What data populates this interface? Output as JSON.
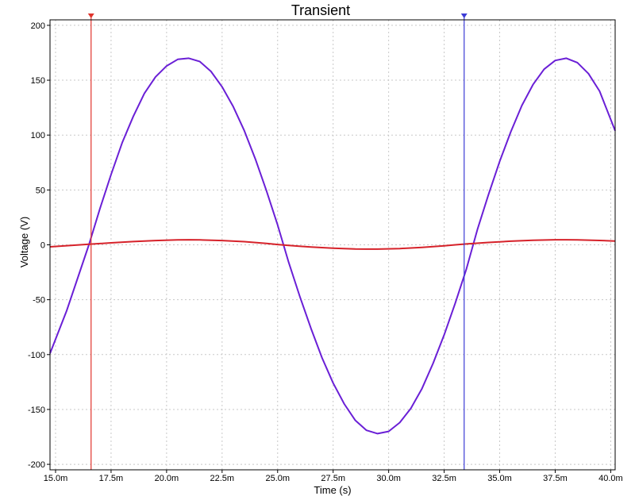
{
  "chart_data": {
    "type": "line",
    "title": "Transient",
    "xlabel": "Time (s)",
    "ylabel": "Voltage (V)",
    "xlim": [
      0.01475,
      0.0402
    ],
    "ylim": [
      -205,
      205
    ],
    "grid": true,
    "x_ticks": [
      0.015,
      0.0175,
      0.02,
      0.0225,
      0.025,
      0.0275,
      0.03,
      0.0325,
      0.035,
      0.0375,
      0.04
    ],
    "x_tick_labels": [
      "15.0m",
      "17.5m",
      "20.0m",
      "22.5m",
      "25.0m",
      "27.5m",
      "30.0m",
      "32.5m",
      "35.0m",
      "37.5m",
      "40.0m"
    ],
    "y_ticks": [
      -200,
      -150,
      -100,
      -50,
      0,
      50,
      100,
      150,
      200
    ],
    "y_tick_labels": [
      "-200",
      "-150",
      "-100",
      "-50",
      "0",
      "50",
      "100",
      "150",
      "200"
    ],
    "series": [
      {
        "color": "#6a1fd6",
        "x": [
          0.01475,
          0.0155,
          0.0165,
          0.017,
          0.0175,
          0.018,
          0.0185,
          0.019,
          0.0195,
          0.02,
          0.0205,
          0.021,
          0.0215,
          0.022,
          0.0225,
          0.023,
          0.0235,
          0.024,
          0.0245,
          0.025,
          0.0255,
          0.026,
          0.0265,
          0.027,
          0.0275,
          0.028,
          0.0285,
          0.029,
          0.0295,
          0.03,
          0.0305,
          0.031,
          0.0315,
          0.032,
          0.0325,
          0.033,
          0.0335,
          0.034,
          0.0345,
          0.035,
          0.0355,
          0.036,
          0.0365,
          0.037,
          0.0375,
          0.038,
          0.0385,
          0.039,
          0.0395,
          0.0402
        ],
        "y": [
          -99,
          -60,
          0,
          33,
          64,
          93,
          117,
          138,
          153,
          163,
          169,
          170,
          167,
          158,
          144,
          126,
          104,
          78,
          49,
          18,
          -16,
          -47,
          -76,
          -103,
          -126,
          -145,
          -160,
          -169,
          -172,
          -170,
          -162,
          -149,
          -131,
          -108,
          -82,
          -53,
          -22,
          14,
          46,
          76,
          103,
          127,
          146,
          160,
          168,
          170,
          166,
          156,
          140,
          104
        ]
      },
      {
        "color": "#d6222a",
        "x": [
          0.01475,
          0.0155,
          0.0165,
          0.0175,
          0.0185,
          0.0195,
          0.0205,
          0.021,
          0.0215,
          0.0225,
          0.0235,
          0.0245,
          0.025,
          0.0255,
          0.0265,
          0.0275,
          0.0285,
          0.029,
          0.0295,
          0.0305,
          0.0315,
          0.0325,
          0.033,
          0.0335,
          0.0345,
          0.0355,
          0.0365,
          0.0375,
          0.038,
          0.0385,
          0.0395,
          0.0402
        ],
        "y": [
          -1.8,
          -0.8,
          0.5,
          1.8,
          3.0,
          3.9,
          4.5,
          4.6,
          4.5,
          3.9,
          2.9,
          1.3,
          0.3,
          -0.6,
          -2.0,
          -3.1,
          -3.8,
          -3.9,
          -3.9,
          -3.4,
          -2.3,
          -0.9,
          0.0,
          0.8,
          2.2,
          3.3,
          4.1,
          4.6,
          4.6,
          4.5,
          4.0,
          3.4
        ]
      }
    ],
    "cursors": [
      {
        "x": 0.0166,
        "color": "#e0342c"
      },
      {
        "x": 0.0334,
        "color": "#3b3bd6"
      }
    ]
  }
}
